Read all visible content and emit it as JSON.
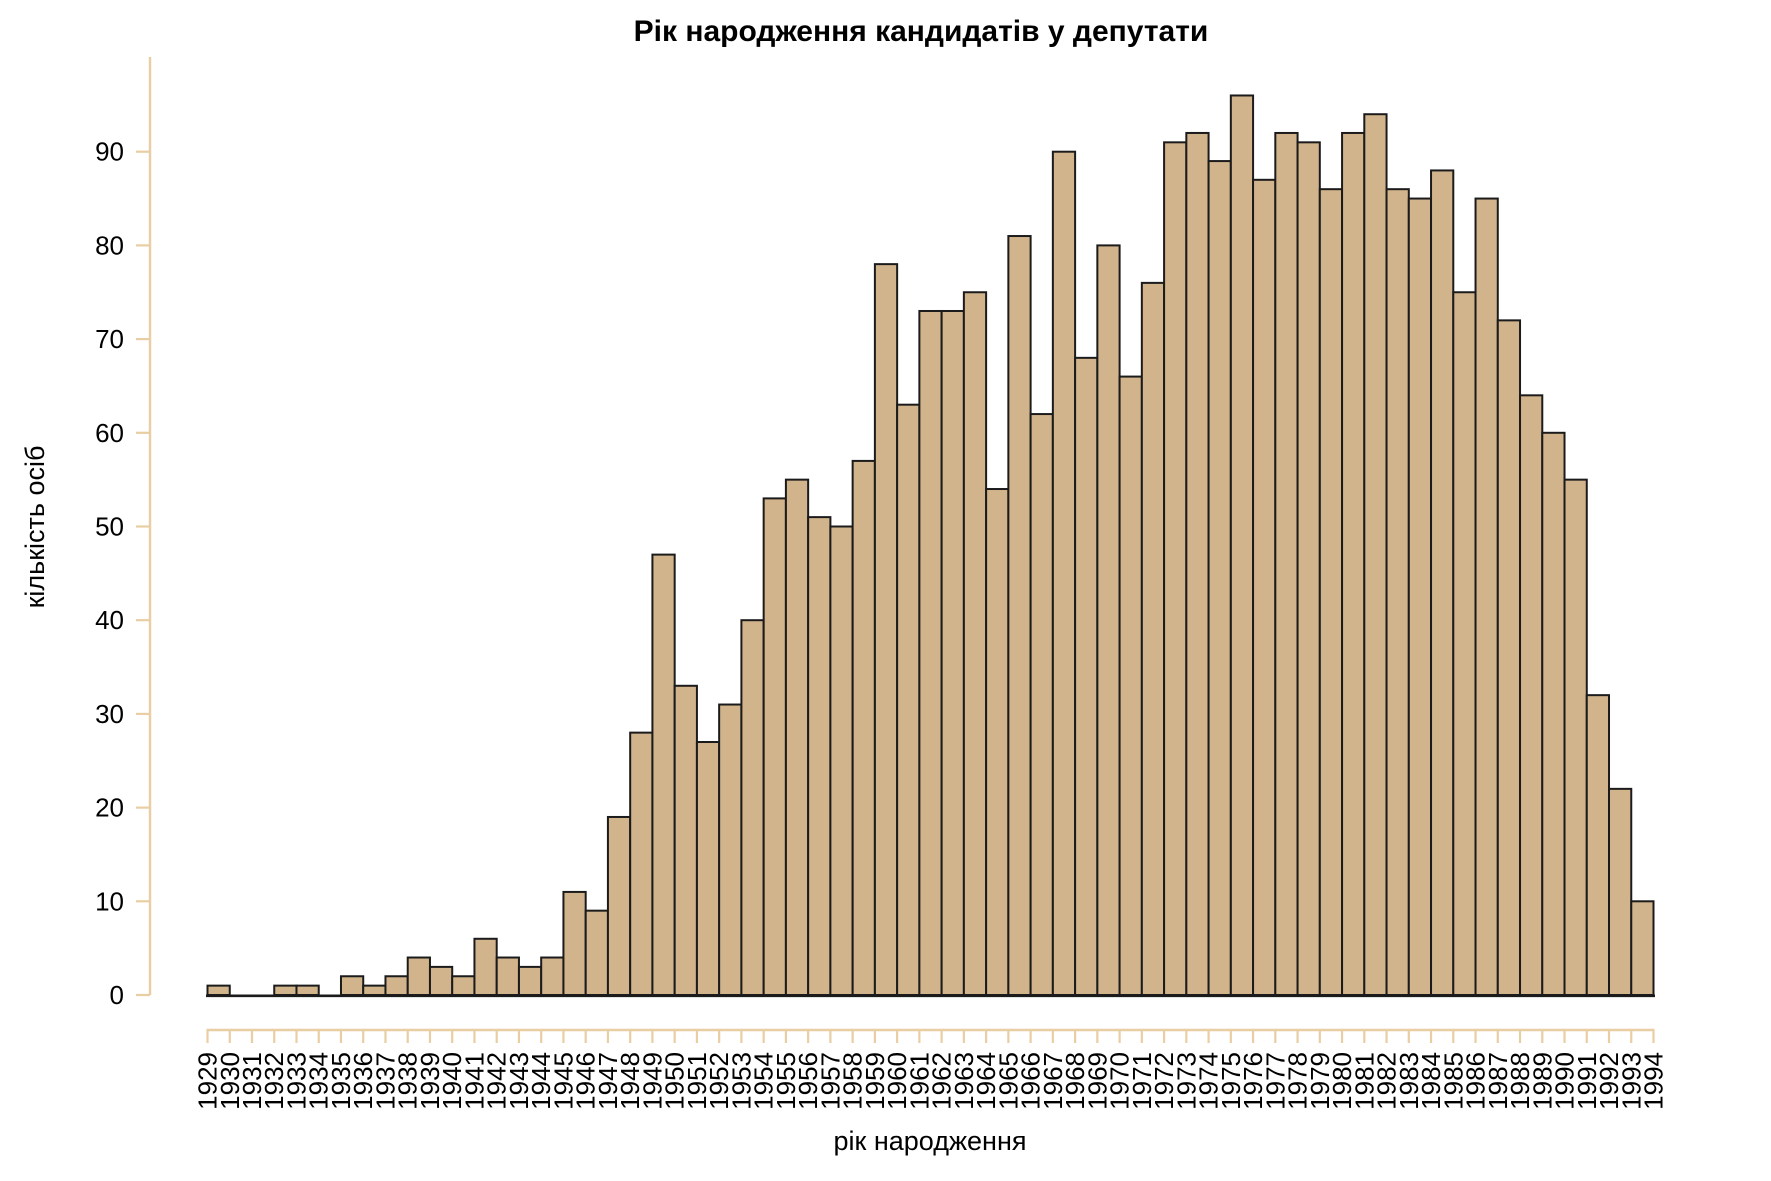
{
  "chart_data": {
    "type": "bar",
    "title": "Рік народження кандидатів у депутати",
    "xlabel": "рік народження",
    "ylabel": "кількість осіб",
    "grid": false,
    "legend": null,
    "ylim": [
      0,
      100
    ],
    "y_ticks": [
      0,
      10,
      20,
      30,
      40,
      50,
      60,
      70,
      80,
      90
    ],
    "x_tick_labels": [
      "1929",
      "1930",
      "1931",
      "1932",
      "1933",
      "1934",
      "1935",
      "1936",
      "1937",
      "1938",
      "1939",
      "1940",
      "1941",
      "1942",
      "1943",
      "1944",
      "1945",
      "1946",
      "1947",
      "1948",
      "1949",
      "1950",
      "1951",
      "1952",
      "1953",
      "1954",
      "1955",
      "1956",
      "1957",
      "1958",
      "1959",
      "1960",
      "1961",
      "1962",
      "1963",
      "1964",
      "1965",
      "1966",
      "1967",
      "1968",
      "1969",
      "1970",
      "1971",
      "1972",
      "1973",
      "1974",
      "1975",
      "1976",
      "1977",
      "1978",
      "1979",
      "1980",
      "1981",
      "1982",
      "1983",
      "1984",
      "1985",
      "1986",
      "1987",
      "1988",
      "1989",
      "1990",
      "1991",
      "1992",
      "1993",
      "1994"
    ],
    "categories": [
      1929,
      1930,
      1931,
      1932,
      1933,
      1934,
      1935,
      1936,
      1937,
      1938,
      1939,
      1940,
      1941,
      1942,
      1943,
      1944,
      1945,
      1946,
      1947,
      1948,
      1949,
      1950,
      1951,
      1952,
      1953,
      1954,
      1955,
      1956,
      1957,
      1958,
      1959,
      1960,
      1961,
      1962,
      1963,
      1964,
      1965,
      1966,
      1967,
      1968,
      1969,
      1970,
      1971,
      1972,
      1973,
      1974,
      1975,
      1976,
      1977,
      1978,
      1979,
      1980,
      1981,
      1982,
      1983,
      1984,
      1985,
      1986,
      1987,
      1988,
      1989,
      1990,
      1991,
      1992,
      1993
    ],
    "values": [
      1,
      0,
      0,
      1,
      1,
      0,
      2,
      1,
      2,
      4,
      3,
      2,
      6,
      4,
      3,
      4,
      11,
      9,
      19,
      28,
      47,
      33,
      27,
      31,
      40,
      53,
      55,
      51,
      50,
      57,
      78,
      63,
      73,
      73,
      75,
      54,
      81,
      62,
      90,
      68,
      80,
      66,
      76,
      91,
      92,
      89,
      96,
      87,
      92,
      91,
      86,
      92,
      94,
      86,
      85,
      88,
      75,
      85,
      72,
      64,
      60,
      55,
      32,
      22,
      10
    ],
    "bar_fill": "#D2B48C",
    "bar_border": "#1B1B1B",
    "axis_color": "#E8CEA2",
    "baseline_color": "#1B1B1B",
    "text_color": "#000000",
    "background": "#FFFFFF"
  }
}
